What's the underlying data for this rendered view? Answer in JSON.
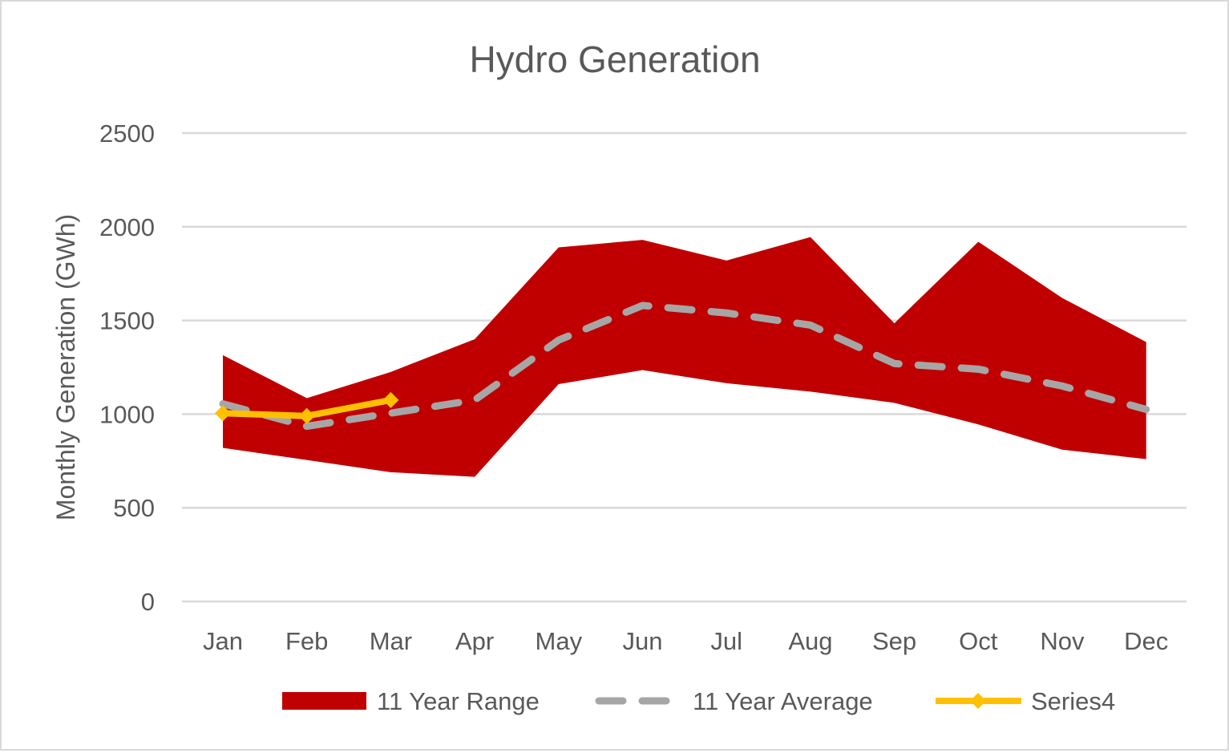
{
  "chart_data": {
    "type": "area",
    "title": "Hydro Generation",
    "xlabel": "",
    "ylabel": "Monthly Generation (GWh)",
    "ylim": [
      0,
      2500
    ],
    "yticks": [
      0,
      500,
      1000,
      1500,
      2000,
      2500
    ],
    "grid": true,
    "legend_position": "bottom",
    "categories": [
      "Jan",
      "Feb",
      "Mar",
      "Apr",
      "May",
      "Jun",
      "Jul",
      "Aug",
      "Sep",
      "Oct",
      "Nov",
      "Dec"
    ],
    "series": [
      {
        "name": "11 Year Range",
        "kind": "range",
        "color": "#c00000",
        "low": [
          820,
          755,
          690,
          665,
          1160,
          1235,
          1165,
          1120,
          1060,
          945,
          810,
          760
        ],
        "high": [
          1315,
          1085,
          1225,
          1400,
          1890,
          1930,
          1820,
          1945,
          1485,
          1920,
          1620,
          1385
        ]
      },
      {
        "name": "11 Year Average",
        "kind": "dashed-line",
        "color": "#a6a6a6",
        "values": [
          1055,
          935,
          1005,
          1075,
          1395,
          1580,
          1540,
          1475,
          1270,
          1240,
          1150,
          1025
        ]
      },
      {
        "name": "Series4",
        "kind": "line-marker",
        "color": "#ffc000",
        "values": [
          1005,
          990,
          1075,
          null,
          null,
          null,
          null,
          null,
          null,
          null,
          null,
          null
        ]
      }
    ]
  }
}
